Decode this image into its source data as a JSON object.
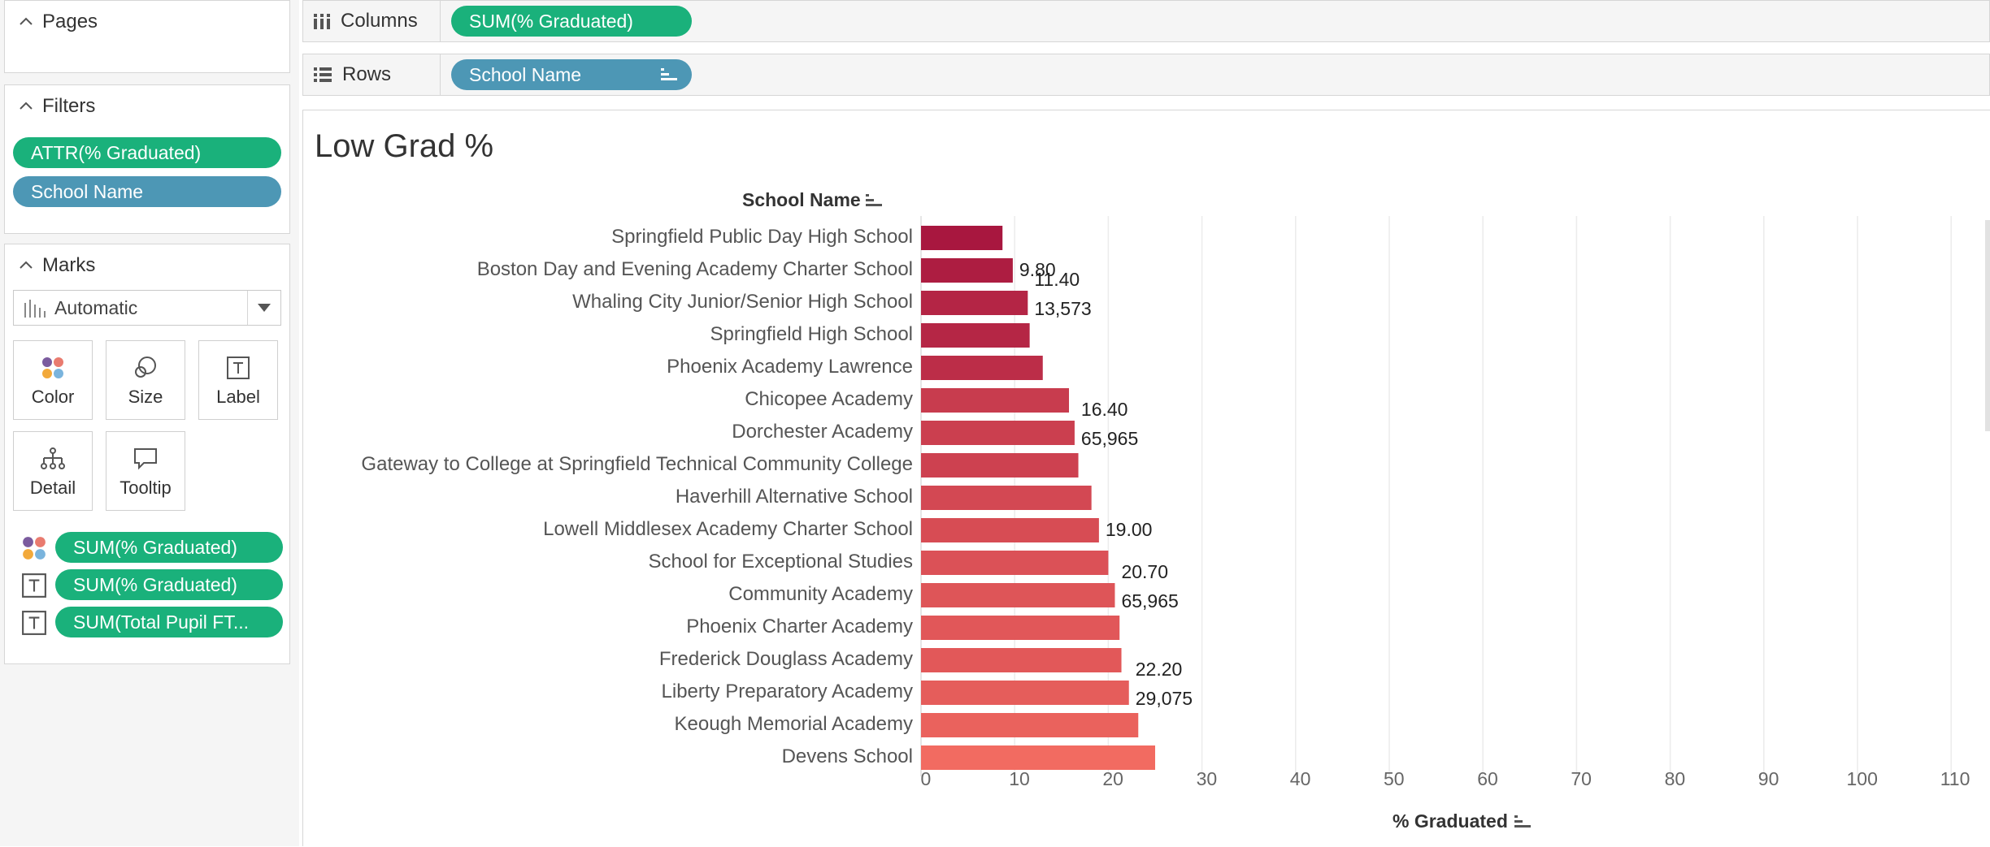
{
  "left_panel": {
    "pages": {
      "title": "Pages"
    },
    "filters": {
      "title": "Filters",
      "pills": [
        {
          "label": "ATTR(% Graduated)",
          "color": "#1ab17b"
        },
        {
          "label": "School Name",
          "color": "#4d97b5"
        }
      ]
    },
    "marks": {
      "title": "Marks",
      "mark_type": "Automatic",
      "buttons": [
        "Color",
        "Size",
        "Label",
        "Detail",
        "Tooltip"
      ],
      "fields": [
        {
          "icon": "color-dots-icon",
          "label": "SUM(% Graduated)"
        },
        {
          "icon": "text-label-icon",
          "label": "SUM(% Graduated)"
        },
        {
          "icon": "text-label-icon",
          "label": "SUM(Total Pupil FT..."
        }
      ]
    }
  },
  "shelves": {
    "columns": {
      "label": "Columns",
      "pill": "SUM(% Graduated)"
    },
    "rows": {
      "label": "Rows",
      "pill": "School Name"
    }
  },
  "viz": {
    "title": "Low Grad %",
    "row_header": "School Name",
    "x_axis_label": "% Graduated"
  },
  "chart_data": {
    "type": "bar",
    "orientation": "horizontal",
    "title": "Low Grad %",
    "xlabel": "% Graduated",
    "ylabel": "School Name",
    "xlim": [
      0,
      112
    ],
    "x_ticks": [
      "0",
      "10",
      "20",
      "30",
      "40",
      "50",
      "60",
      "70",
      "80",
      "90",
      "100",
      "110"
    ],
    "grid": "vertical",
    "categories": [
      "Springfield Public Day High School",
      "Boston Day and Evening Academy Charter School",
      "Whaling City Junior/Senior High School",
      "Springfield High School",
      "Phoenix Academy Lawrence",
      "Chicopee Academy",
      "Dorchester Academy",
      "Gateway to College at Springfield Technical Community College",
      "Haverhill Alternative School",
      "Lowell Middlesex Academy Charter School",
      "School for Exceptional Studies",
      "Community Academy",
      "Phoenix Charter Academy",
      "Frederick Douglass Academy",
      "Liberty Preparatory Academy",
      "Keough Memorial Academy",
      "Devens School"
    ],
    "values": [
      8.7,
      9.8,
      11.4,
      11.6,
      13.0,
      15.8,
      16.4,
      16.8,
      18.2,
      19.0,
      20.0,
      20.7,
      21.2,
      21.4,
      22.2,
      23.2,
      25.0
    ],
    "labels": [
      {
        "row": 1,
        "lines": [
          "9.80"
        ]
      },
      {
        "row": 2,
        "lines": [
          "11.40",
          "13,573"
        ]
      },
      {
        "row": 6,
        "lines": [
          "16.40",
          "65,965"
        ]
      },
      {
        "row": 9,
        "lines": [
          "19.00"
        ]
      },
      {
        "row": 11,
        "lines": [
          "20.70",
          "65,965"
        ]
      },
      {
        "row": 14,
        "lines": [
          "22.20",
          "29,075"
        ]
      }
    ],
    "color_range": [
      "#a8173f",
      "#f26b61"
    ]
  }
}
